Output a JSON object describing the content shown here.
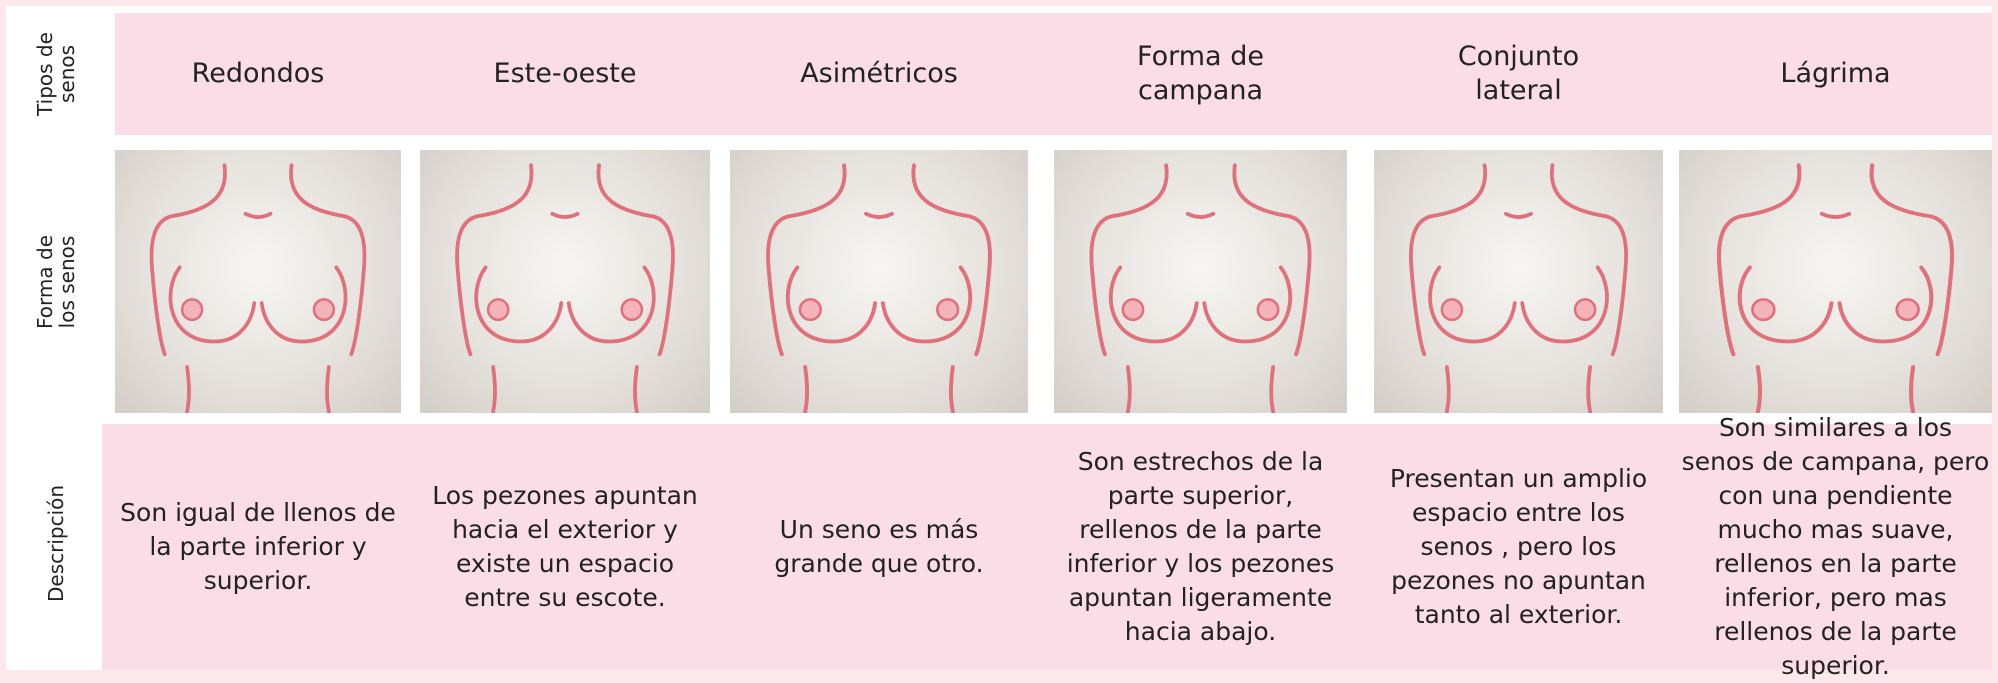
{
  "row_labels": [
    "Tipos de senos",
    "Forma de los senos",
    "Descripción"
  ],
  "columns": [
    {
      "type": "Redondos",
      "description": "Son igual de llenos de la parte inferior y superior."
    },
    {
      "type": "Este-oeste",
      "description": "Los pezones apuntan hacia el exterior y existe un espacio entre su escote."
    },
    {
      "type": "Asimétricos",
      "description": "Un seno es más grande que otro."
    },
    {
      "type": "Forma de campana",
      "description": "Son estrechos de la parte superior, rellenos de la parte inferior y los pezones apuntan ligeramente hacia abajo."
    },
    {
      "type": "Conjunto lateral",
      "description": "Presentan un amplio espacio entre los senos , pero los pezones no apuntan tanto al exterior."
    },
    {
      "type": "Lágrima",
      "description": "Son similares a los senos de campana, pero con una pendiente mucho mas suave, rellenos en la parte inferior, pero mas rellenos de la parte superior."
    }
  ]
}
